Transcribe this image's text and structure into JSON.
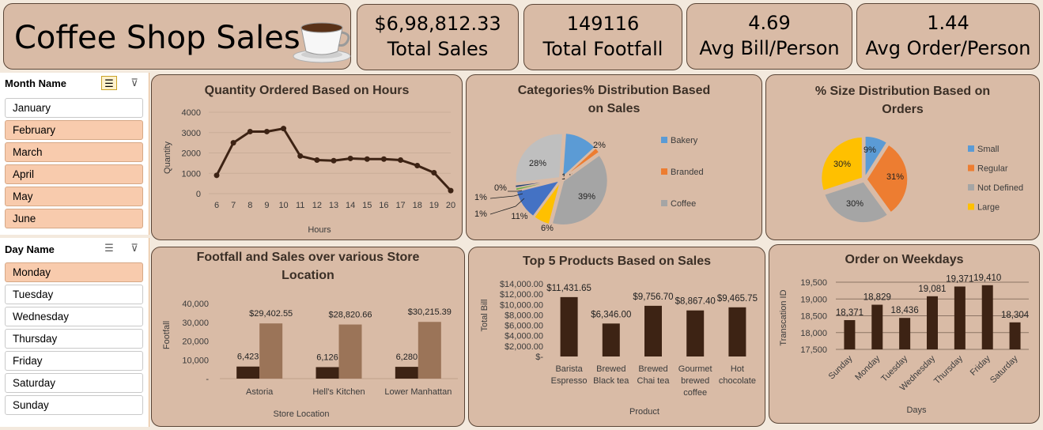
{
  "header": {
    "title": "Coffee Shop Sales"
  },
  "kpis": [
    {
      "value": "$6,98,812.33",
      "label": "Total Sales"
    },
    {
      "value": "149116",
      "label": "Total Footfall"
    },
    {
      "value": "4.69",
      "label": "Avg Bill/Person"
    },
    {
      "value": "1.44",
      "label": "Avg Order/Person"
    }
  ],
  "month_slicer": {
    "title": "Month Name",
    "items": [
      {
        "label": "January",
        "selected": false
      },
      {
        "label": "February",
        "selected": true
      },
      {
        "label": "March",
        "selected": true
      },
      {
        "label": "April",
        "selected": true
      },
      {
        "label": "May",
        "selected": true
      },
      {
        "label": "June",
        "selected": true
      }
    ]
  },
  "day_slicer": {
    "title": "Day Name",
    "items": [
      {
        "label": "Monday",
        "selected": true
      },
      {
        "label": "Tuesday",
        "selected": false
      },
      {
        "label": "Wednesday",
        "selected": false
      },
      {
        "label": "Thursday",
        "selected": false
      },
      {
        "label": "Friday",
        "selected": false
      },
      {
        "label": "Saturday",
        "selected": false
      },
      {
        "label": "Sunday",
        "selected": false
      }
    ]
  },
  "chart_data": [
    {
      "id": "hours",
      "type": "line",
      "title": "Quantity Ordered Based on Hours",
      "xlabel": "Hours",
      "ylabel": "Quantity",
      "x": [
        6,
        7,
        8,
        9,
        10,
        11,
        12,
        13,
        14,
        15,
        16,
        17,
        18,
        19,
        20
      ],
      "values": [
        900,
        2500,
        3050,
        3050,
        3200,
        1850,
        1650,
        1620,
        1730,
        1700,
        1700,
        1650,
        1380,
        1030,
        150
      ],
      "ylim": [
        0,
        4000
      ],
      "yticks": [
        "0",
        "1000",
        "2000",
        "3000",
        "4000"
      ],
      "color": "#3d2314"
    },
    {
      "id": "categories",
      "type": "pie",
      "title": "Categories% Distribution Based on Sales",
      "labels": [
        "12%",
        "2%",
        "39%",
        "6%",
        "11%",
        "1%",
        "1%",
        "0%",
        "28%"
      ],
      "values": [
        12,
        2,
        39,
        6,
        11,
        1,
        1,
        0,
        28
      ],
      "colors": [
        "#5b9bd5",
        "#ed7d31",
        "#a5a5a5",
        "#ffc000",
        "#4472c4",
        "#70ad47",
        "#264478",
        "#9e480e",
        "#bfbfbf"
      ],
      "legend": [
        {
          "name": "Bakery",
          "color": "#5b9bd5"
        },
        {
          "name": "Branded",
          "color": "#ed7d31"
        },
        {
          "name": "Coffee",
          "color": "#a5a5a5"
        }
      ]
    },
    {
      "id": "sizes",
      "type": "pie",
      "title": "% Size Distribution Based on Orders",
      "labels": [
        "9%",
        "31%",
        "30%",
        "30%"
      ],
      "values": [
        9,
        31,
        30,
        30
      ],
      "colors": [
        "#5b9bd5",
        "#ed7d31",
        "#a5a5a5",
        "#ffc000"
      ],
      "legend": [
        {
          "name": "Small",
          "color": "#5b9bd5"
        },
        {
          "name": "Regular",
          "color": "#ed7d31"
        },
        {
          "name": "Not Defined",
          "color": "#a5a5a5"
        },
        {
          "name": "Large",
          "color": "#ffc000"
        }
      ]
    },
    {
      "id": "stores",
      "type": "bar",
      "title": "Footfall and Sales over various Store Location",
      "xlabel": "Store Location",
      "ylabel": "Footfall",
      "categories": [
        "Astoria",
        "Hell's Kitchen",
        "Lower Manhattan"
      ],
      "series": [
        {
          "values": [
            6423,
            6126,
            6280
          ],
          "labels": [
            "6,423",
            "6,126",
            "6,280"
          ],
          "color": "#3d2314"
        },
        {
          "values": [
            29402.55,
            28820.66,
            30215.39
          ],
          "labels": [
            "$29,402.55",
            "$28,820.66",
            "$30,215.39"
          ],
          "color": "#9b7458"
        }
      ],
      "ylim": [
        0,
        40000
      ],
      "yticks": [
        "-",
        "10,000",
        "20,000",
        "30,000",
        "40,000"
      ]
    },
    {
      "id": "products",
      "type": "bar",
      "title": "Top 5 Products Based on Sales",
      "xlabel": "Product",
      "ylabel": "Total Bill",
      "categories": [
        [
          "Barista",
          "Espresso"
        ],
        [
          "Brewed",
          "Black tea"
        ],
        [
          "Brewed",
          "Chai tea"
        ],
        [
          "Gourmet",
          "brewed",
          "coffee"
        ],
        [
          "Hot",
          "chocolate"
        ]
      ],
      "values": [
        11431.65,
        6346.0,
        9756.7,
        8867.4,
        9465.75
      ],
      "labels": [
        "$11,431.65",
        "$6,346.00",
        "$9,756.70",
        "$8,867.40",
        "$9,465.75"
      ],
      "ylim": [
        0,
        14000
      ],
      "yticks": [
        "$-",
        "$2,000.00",
        "$4,000.00",
        "$6,000.00",
        "$8,000.00",
        "$10,000.00",
        "$12,000.00",
        "$14,000.00"
      ],
      "color": "#3d2314"
    },
    {
      "id": "weekdays",
      "type": "bar",
      "title": "Order on Weekdays",
      "xlabel": "Days",
      "ylabel": "Transcation ID",
      "categories": [
        "Sunday",
        "Monday",
        "Tuesday",
        "Wednesday",
        "Thursday",
        "Friday",
        "Saturday"
      ],
      "values": [
        18371,
        18829,
        18436,
        19081,
        19371,
        19410,
        18304
      ],
      "labels": [
        "18,371",
        "18,829",
        "18,436",
        "19,081",
        "19,371",
        "19,410",
        "18,304"
      ],
      "ylim": [
        17500,
        19500
      ],
      "yticks": [
        "17,500",
        "18,000",
        "18,500",
        "19,000",
        "19,500"
      ],
      "color": "#3d2314"
    }
  ]
}
